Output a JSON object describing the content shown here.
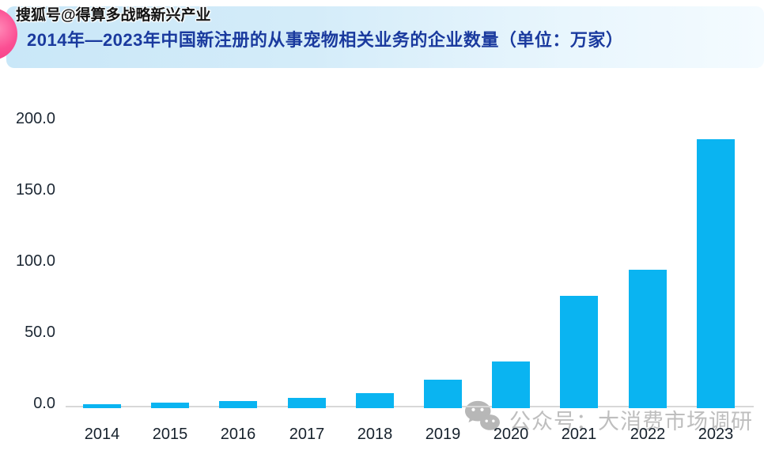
{
  "watermarks": {
    "top": "搜狐号@得算多战略新兴产业",
    "bottom_icon": "wechat-icon",
    "bottom_text": "公众号：大消费市场调研"
  },
  "header": {
    "title": "2014年—2023年中国新注册的从事宠物相关业务的企业数量（单位：万家）",
    "title_color": "#1a3a9e",
    "band_color_left": "#c9e7f8",
    "band_color_right": "#f4fbff",
    "accent_dot_color": "#f2357e"
  },
  "chart_data": {
    "type": "bar",
    "title": "2014年—2023年中国新注册的从事宠物相关业务的企业数量（单位：万家）",
    "unit": "万家",
    "categories": [
      "2014",
      "2015",
      "2016",
      "2017",
      "2018",
      "2019",
      "2020",
      "2021",
      "2022",
      "2023"
    ],
    "values": [
      2.5,
      3.9,
      5.2,
      7.2,
      10.8,
      20.0,
      32.5,
      79.0,
      97.0,
      189.0
    ],
    "xlabel": "",
    "ylabel": "",
    "ylim": [
      0,
      200
    ],
    "yticks": [
      0,
      50,
      100,
      150,
      200
    ],
    "ytick_labels": [
      "0.0",
      "50.0",
      "100.0",
      "150.0",
      "200.0"
    ],
    "bar_color": "#0ab4f1",
    "axis_line_color": "#d8d8d8",
    "tick_label_color": "#1c2733",
    "grid": false,
    "legend_position": "none"
  }
}
